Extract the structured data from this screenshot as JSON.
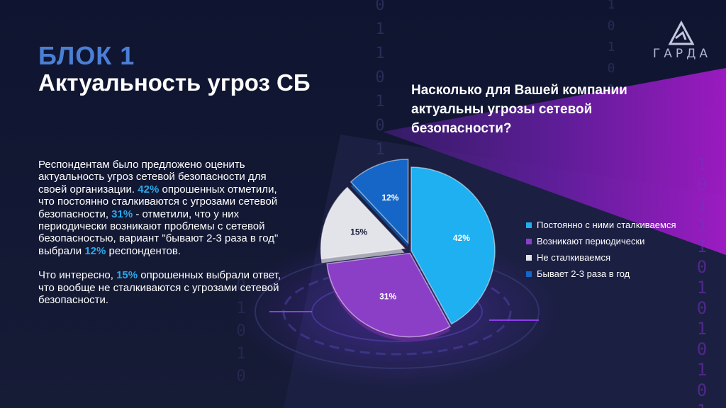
{
  "brand": {
    "name": "ГАРДА",
    "logo_icon": "garda-triangle-logo"
  },
  "block_label": "БЛОК 1",
  "block_title": "Актуальность угроз СБ",
  "body": {
    "p1_a": "Респондентам было предложено оценить актуальность угроз сетевой безопасности для своей организации. ",
    "p1_v1": "42%",
    "p1_b": " опрошенных отметили, что постоянно сталкиваются с угрозами сетевой безопасности, ",
    "p1_v2": "31%",
    "p1_c": " - отметили, что у них периодически возникают проблемы с сетевой безопасностью, вариант \"бывают 2-3 раза в год\" выбрали ",
    "p1_v3": "12%",
    "p1_d": " респондентов.",
    "p2_a": "Что интересно, ",
    "p2_v1": "15%",
    "p2_b": " опрошенных выбрали ответ, что вообще не сталкиваются с угрозами сетевой безопасности."
  },
  "chart_data": {
    "type": "pie",
    "title": "Насколько для Вашей компании актуальны угрозы сетевой безопасности?",
    "slices": [
      {
        "label": "Постоянно с ними сталкиваемся",
        "value": 42,
        "display": "42%",
        "color": "#1eb0f0"
      },
      {
        "label": "Возникают периодически",
        "value": 31,
        "display": "31%",
        "color": "#8a3fc6"
      },
      {
        "label": "Не сталкиваемся",
        "value": 15,
        "display": "15%",
        "color": "#e3e3ea"
      },
      {
        "label": "Бывает 2-3 раза в год",
        "value": 12,
        "display": "12%",
        "color": "#1566c6"
      }
    ],
    "legend_position": "right"
  },
  "decor": {
    "binary_right": [
      "1",
      "0",
      "1",
      "1",
      "1",
      "0",
      "1",
      "0",
      "1",
      "0",
      "1",
      "0",
      "1"
    ],
    "binary_center": [
      "0",
      "1",
      "1",
      "0",
      "1",
      "0",
      "1"
    ],
    "binary_top": [
      "1",
      "0",
      "1",
      "0",
      "1"
    ],
    "binary_bottom": [
      "0",
      "1",
      "0",
      "1",
      "0"
    ]
  }
}
